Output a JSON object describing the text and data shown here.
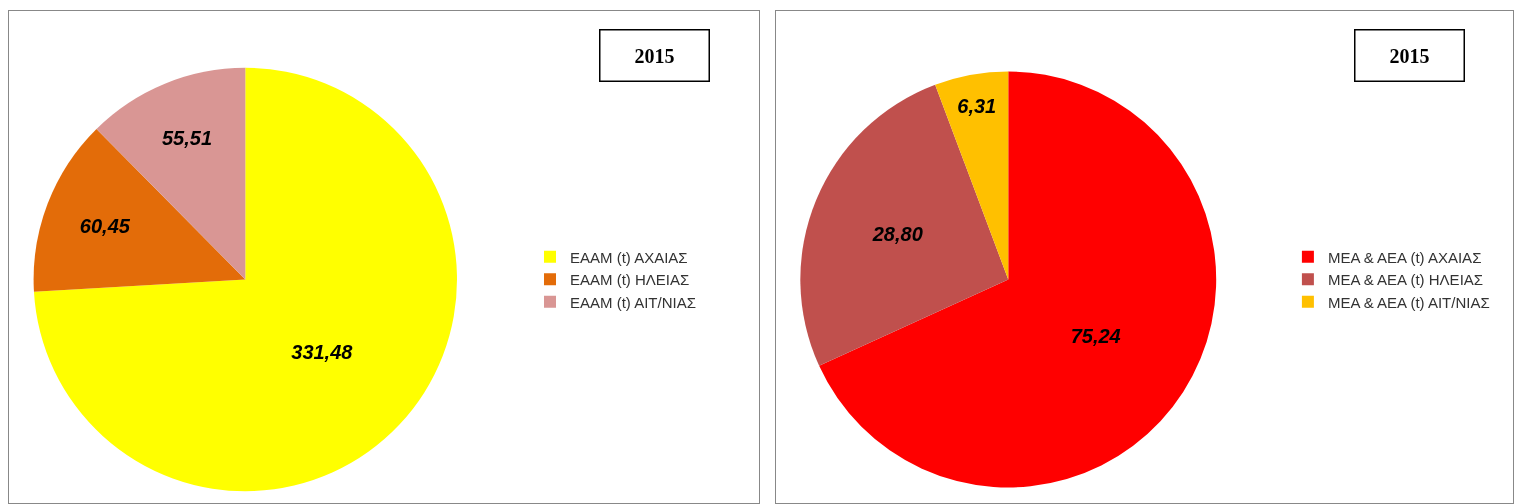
{
  "chart_data": [
    {
      "type": "pie",
      "title": "2015",
      "categories": [
        "ΕΑΑΜ (t) ΑΧΑΙΑΣ",
        "ΕΑΑΜ (t) ΗΛΕΙΑΣ",
        "ΕΑΑΜ (t) ΑΙΤ/ΝΙΑΣ"
      ],
      "values": [
        331.48,
        60.45,
        55.51
      ],
      "value_labels": [
        "331,48",
        "60,45",
        "55,51"
      ],
      "colors": [
        "#ffff00",
        "#e36c09",
        "#d99694"
      ],
      "legend": "right"
    },
    {
      "type": "pie",
      "title": "2015",
      "categories": [
        "ΜΕΑ & ΑΕΑ (t) ΑΧΑΙΑΣ",
        "ΜΕΑ & ΑΕΑ (t) ΗΛΕΙΑΣ",
        "ΜΕΑ & ΑΕΑ (t) ΑΙΤ/ΝΙΑΣ"
      ],
      "values": [
        75.24,
        28.8,
        6.31
      ],
      "value_labels": [
        "75,24",
        "28,80",
        "6,31"
      ],
      "colors": [
        "#ff0000",
        "#c0504d",
        "#ffc000"
      ],
      "legend": "right"
    }
  ]
}
